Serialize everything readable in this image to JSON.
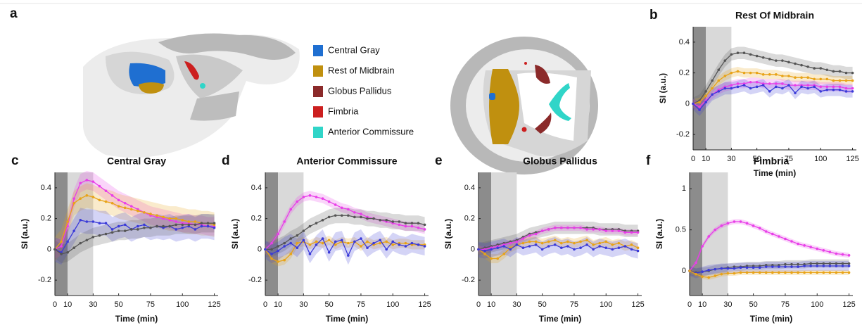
{
  "panel_a": {
    "label": "a",
    "legend": [
      {
        "label": "Central Gray",
        "color": "#1f6fd1"
      },
      {
        "label": "Rest of Midbrain",
        "color": "#c0900f"
      },
      {
        "label": "Globus Pallidus",
        "color": "#8b2a2a"
      },
      {
        "label": "Fimbria",
        "color": "#cc1f1f"
      },
      {
        "label": "Anterior Commissure",
        "color": "#30d5c8"
      }
    ]
  },
  "chart_data": [
    {
      "type": "line",
      "panel_label": "b",
      "title": "Rest Of Midbrain",
      "x_label": "Time (min)",
      "y_label": "SI (a.u.)",
      "xlim": [
        0,
        128
      ],
      "ylim": [
        -0.3,
        0.5
      ],
      "xticks": [
        0,
        10,
        30,
        50,
        75,
        100,
        125
      ],
      "yticks": [
        -0.2,
        0,
        0.2,
        0.4
      ],
      "shaded_spans": [
        {
          "xlim": [
            0,
            10
          ],
          "color": "#8c8c8c"
        },
        {
          "xlim": [
            10,
            30
          ],
          "color": "#d9d9d9"
        }
      ],
      "x": [
        0,
        5,
        10,
        15,
        20,
        25,
        30,
        35,
        40,
        45,
        50,
        55,
        60,
        65,
        70,
        75,
        80,
        85,
        90,
        95,
        100,
        105,
        110,
        115,
        120,
        125
      ],
      "series": [
        {
          "color": "#555555",
          "error": 0.04,
          "values": [
            0,
            0.02,
            0.08,
            0.15,
            0.22,
            0.28,
            0.32,
            0.33,
            0.33,
            0.32,
            0.31,
            0.3,
            0.29,
            0.28,
            0.28,
            0.27,
            0.26,
            0.25,
            0.24,
            0.23,
            0.23,
            0.22,
            0.21,
            0.21,
            0.2,
            0.2
          ]
        },
        {
          "color": "#e8a317",
          "error": 0.03,
          "values": [
            0,
            0.01,
            0.05,
            0.1,
            0.15,
            0.18,
            0.2,
            0.21,
            0.2,
            0.2,
            0.2,
            0.19,
            0.19,
            0.19,
            0.18,
            0.18,
            0.17,
            0.17,
            0.17,
            0.16,
            0.16,
            0.16,
            0.15,
            0.15,
            0.15,
            0.15
          ]
        },
        {
          "color": "#e83ee8",
          "error": 0.03,
          "values": [
            0,
            -0.02,
            0.02,
            0.06,
            0.09,
            0.11,
            0.12,
            0.13,
            0.13,
            0.14,
            0.14,
            0.13,
            0.13,
            0.13,
            0.13,
            0.12,
            0.12,
            0.12,
            0.12,
            0.12,
            0.11,
            0.11,
            0.11,
            0.11,
            0.1,
            0.1
          ]
        },
        {
          "color": "#3a3ad8",
          "error": 0.04,
          "values": [
            0,
            -0.04,
            0.01,
            0.06,
            0.08,
            0.1,
            0.1,
            0.11,
            0.12,
            0.1,
            0.11,
            0.12,
            0.08,
            0.11,
            0.1,
            0.12,
            0.07,
            0.11,
            0.1,
            0.11,
            0.08,
            0.09,
            0.09,
            0.09,
            0.08,
            0.08
          ]
        }
      ]
    },
    {
      "type": "line",
      "panel_label": "c",
      "title": "Central Gray",
      "x_label": "Time (min)",
      "y_label": "SI (a.u.)",
      "xlim": [
        0,
        128
      ],
      "ylim": [
        -0.3,
        0.5
      ],
      "xticks": [
        0,
        10,
        30,
        50,
        75,
        100,
        125
      ],
      "yticks": [
        -0.2,
        0,
        0.2,
        0.4
      ],
      "shaded_spans": [
        {
          "xlim": [
            0,
            10
          ],
          "color": "#8c8c8c"
        },
        {
          "xlim": [
            10,
            30
          ],
          "color": "#d9d9d9"
        }
      ],
      "x": [
        0,
        5,
        10,
        15,
        20,
        25,
        30,
        35,
        40,
        45,
        50,
        55,
        60,
        65,
        70,
        75,
        80,
        85,
        90,
        95,
        100,
        105,
        110,
        115,
        120,
        125
      ],
      "series": [
        {
          "color": "#e83ee8",
          "error": 0.06,
          "values": [
            0,
            0.02,
            0.15,
            0.33,
            0.43,
            0.45,
            0.44,
            0.41,
            0.38,
            0.35,
            0.32,
            0.3,
            0.28,
            0.26,
            0.24,
            0.22,
            0.21,
            0.2,
            0.19,
            0.18,
            0.17,
            0.17,
            0.16,
            0.16,
            0.15,
            0.15
          ]
        },
        {
          "color": "#e8a317",
          "error": 0.08,
          "values": [
            0,
            0.05,
            0.18,
            0.3,
            0.33,
            0.35,
            0.34,
            0.32,
            0.31,
            0.3,
            0.28,
            0.27,
            0.26,
            0.25,
            0.24,
            0.23,
            0.22,
            0.21,
            0.2,
            0.2,
            0.19,
            0.18,
            0.18,
            0.17,
            0.17,
            0.16
          ]
        },
        {
          "color": "#3a3ad8",
          "error": 0.08,
          "values": [
            0,
            -0.02,
            0.05,
            0.12,
            0.19,
            0.18,
            0.18,
            0.17,
            0.17,
            0.13,
            0.15,
            0.16,
            0.13,
            0.15,
            0.16,
            0.14,
            0.15,
            0.14,
            0.15,
            0.13,
            0.14,
            0.15,
            0.13,
            0.15,
            0.15,
            0.14
          ]
        },
        {
          "color": "#555555",
          "error": 0.06,
          "values": [
            0,
            -0.03,
            -0.02,
            0.01,
            0.04,
            0.06,
            0.08,
            0.09,
            0.1,
            0.11,
            0.12,
            0.12,
            0.13,
            0.13,
            0.14,
            0.14,
            0.15,
            0.15,
            0.15,
            0.16,
            0.16,
            0.16,
            0.16,
            0.17,
            0.17,
            0.17
          ]
        }
      ]
    },
    {
      "type": "line",
      "panel_label": "d",
      "title": "Anterior Commissure",
      "x_label": "Time (min)",
      "y_label": "SI (a.u.)",
      "xlim": [
        0,
        128
      ],
      "ylim": [
        -0.3,
        0.5
      ],
      "xticks": [
        0,
        10,
        30,
        50,
        75,
        100,
        125
      ],
      "yticks": [
        -0.2,
        0,
        0.2,
        0.4
      ],
      "shaded_spans": [
        {
          "xlim": [
            0,
            10
          ],
          "color": "#8c8c8c"
        },
        {
          "xlim": [
            10,
            30
          ],
          "color": "#d9d9d9"
        }
      ],
      "x": [
        0,
        5,
        10,
        15,
        20,
        25,
        30,
        35,
        40,
        45,
        50,
        55,
        60,
        65,
        70,
        75,
        80,
        85,
        90,
        95,
        100,
        105,
        110,
        115,
        120,
        125
      ],
      "series": [
        {
          "color": "#e83ee8",
          "error": 0.03,
          "values": [
            0,
            0.04,
            0.1,
            0.18,
            0.26,
            0.31,
            0.34,
            0.35,
            0.34,
            0.33,
            0.31,
            0.29,
            0.27,
            0.26,
            0.24,
            0.23,
            0.21,
            0.2,
            0.19,
            0.18,
            0.17,
            0.16,
            0.15,
            0.15,
            0.14,
            0.13
          ]
        },
        {
          "color": "#555555",
          "error": 0.05,
          "values": [
            0,
            0.0,
            0.02,
            0.04,
            0.07,
            0.09,
            0.12,
            0.15,
            0.17,
            0.19,
            0.21,
            0.22,
            0.22,
            0.22,
            0.21,
            0.21,
            0.2,
            0.2,
            0.19,
            0.19,
            0.18,
            0.18,
            0.17,
            0.17,
            0.17,
            0.16
          ]
        },
        {
          "color": "#e8a317",
          "error": 0.03,
          "values": [
            0,
            -0.06,
            -0.08,
            -0.07,
            -0.03,
            0.04,
            0.05,
            0.03,
            0.05,
            0.04,
            0.06,
            0.03,
            0.05,
            0.04,
            0.05,
            0.02,
            0.05,
            0.03,
            0.04,
            0.05,
            0.03,
            0.04,
            0.04,
            0.03,
            0.03,
            0.03
          ]
        },
        {
          "color": "#3a3ad8",
          "error": 0.06,
          "values": [
            0,
            -0.03,
            -0.01,
            0.02,
            0.04,
            0.01,
            0.06,
            -0.03,
            0.03,
            0.07,
            -0.02,
            0.05,
            0.06,
            -0.04,
            0.05,
            0.07,
            0.01,
            0.04,
            0.06,
            0.0,
            0.05,
            0.03,
            0.02,
            0.04,
            0.03,
            0.02
          ]
        }
      ]
    },
    {
      "type": "line",
      "panel_label": "e",
      "title": "Globus Pallidus",
      "x_label": "Time (min)",
      "y_label": "SI (a.u.)",
      "xlim": [
        0,
        128
      ],
      "ylim": [
        -0.3,
        0.5
      ],
      "xticks": [
        0,
        10,
        30,
        50,
        75,
        100,
        125
      ],
      "yticks": [
        -0.2,
        0,
        0.2,
        0.4
      ],
      "shaded_spans": [
        {
          "xlim": [
            0,
            10
          ],
          "color": "#8c8c8c"
        },
        {
          "xlim": [
            10,
            30
          ],
          "color": "#d9d9d9"
        }
      ],
      "x": [
        0,
        5,
        10,
        15,
        20,
        25,
        30,
        35,
        40,
        45,
        50,
        55,
        60,
        65,
        70,
        75,
        80,
        85,
        90,
        95,
        100,
        105,
        110,
        115,
        120,
        125
      ],
      "series": [
        {
          "color": "#555555",
          "error": 0.04,
          "values": [
            0,
            0.01,
            0.02,
            0.03,
            0.04,
            0.05,
            0.06,
            0.08,
            0.1,
            0.11,
            0.12,
            0.13,
            0.14,
            0.14,
            0.14,
            0.14,
            0.14,
            0.14,
            0.14,
            0.13,
            0.13,
            0.13,
            0.13,
            0.12,
            0.12,
            0.12
          ]
        },
        {
          "color": "#e83ee8",
          "error": 0.02,
          "values": [
            0,
            0.0,
            0.01,
            0.02,
            0.03,
            0.04,
            0.05,
            0.07,
            0.09,
            0.1,
            0.12,
            0.13,
            0.14,
            0.14,
            0.14,
            0.14,
            0.14,
            0.13,
            0.13,
            0.13,
            0.12,
            0.12,
            0.12,
            0.11,
            0.11,
            0.11
          ]
        },
        {
          "color": "#e8a317",
          "error": 0.03,
          "values": [
            0,
            -0.03,
            -0.06,
            -0.06,
            -0.03,
            0.01,
            0.03,
            0.04,
            0.05,
            0.05,
            0.04,
            0.05,
            0.06,
            0.04,
            0.05,
            0.04,
            0.05,
            0.06,
            0.03,
            0.04,
            0.05,
            0.03,
            0.04,
            0.02,
            0.03,
            0.01
          ]
        },
        {
          "color": "#3a3ad8",
          "error": 0.05,
          "values": [
            0,
            -0.01,
            0.0,
            0.01,
            0.02,
            0.0,
            0.03,
            0.01,
            0.02,
            0.03,
            0.0,
            0.02,
            0.03,
            0.01,
            0.02,
            0.0,
            0.01,
            0.03,
            0.0,
            0.02,
            0.01,
            0.0,
            0.01,
            0.02,
            0.0,
            -0.01
          ]
        }
      ]
    },
    {
      "type": "line",
      "panel_label": "f",
      "title": "Fimbria",
      "x_label": "Time (min)",
      "y_label": "SI (a.u.)",
      "xlim": [
        0,
        128
      ],
      "ylim": [
        -0.3,
        1.2
      ],
      "xticks": [
        0,
        10,
        30,
        50,
        75,
        100,
        125
      ],
      "yticks": [
        0,
        0.5,
        1
      ],
      "shaded_spans": [
        {
          "xlim": [
            0,
            10
          ],
          "color": "#8c8c8c"
        },
        {
          "xlim": [
            10,
            30
          ],
          "color": "#d9d9d9"
        }
      ],
      "x": [
        0,
        5,
        10,
        15,
        20,
        25,
        30,
        35,
        40,
        45,
        50,
        55,
        60,
        65,
        70,
        75,
        80,
        85,
        90,
        95,
        100,
        105,
        110,
        115,
        120,
        125
      ],
      "series": [
        {
          "color": "#e83ee8",
          "error": 0.03,
          "values": [
            0,
            0.1,
            0.3,
            0.42,
            0.5,
            0.55,
            0.58,
            0.6,
            0.6,
            0.58,
            0.55,
            0.52,
            0.48,
            0.45,
            0.42,
            0.39,
            0.36,
            0.33,
            0.31,
            0.29,
            0.27,
            0.25,
            0.23,
            0.21,
            0.2,
            0.19
          ]
        },
        {
          "color": "#555555",
          "error": 0.05,
          "values": [
            0,
            -0.02,
            -0.01,
            0.0,
            0.02,
            0.03,
            0.04,
            0.05,
            0.05,
            0.06,
            0.06,
            0.06,
            0.07,
            0.07,
            0.07,
            0.08,
            0.08,
            0.08,
            0.08,
            0.09,
            0.09,
            0.09,
            0.09,
            0.09,
            0.09,
            0.09
          ]
        },
        {
          "color": "#3a3ad8",
          "error": 0.06,
          "values": [
            0,
            -0.03,
            -0.01,
            0.01,
            0.02,
            0.03,
            0.03,
            0.03,
            0.04,
            0.04,
            0.04,
            0.04,
            0.05,
            0.05,
            0.05,
            0.05,
            0.05,
            0.05,
            0.06,
            0.06,
            0.06,
            0.06,
            0.06,
            0.06,
            0.06,
            0.06
          ]
        },
        {
          "color": "#e8a317",
          "error": 0.03,
          "values": [
            0,
            -0.04,
            -0.07,
            -0.08,
            -0.06,
            -0.04,
            -0.03,
            -0.03,
            -0.02,
            -0.02,
            -0.02,
            -0.02,
            -0.02,
            -0.02,
            -0.02,
            -0.02,
            -0.02,
            -0.02,
            -0.02,
            -0.02,
            -0.02,
            -0.02,
            -0.02,
            -0.02,
            -0.02,
            -0.02
          ]
        }
      ]
    }
  ]
}
